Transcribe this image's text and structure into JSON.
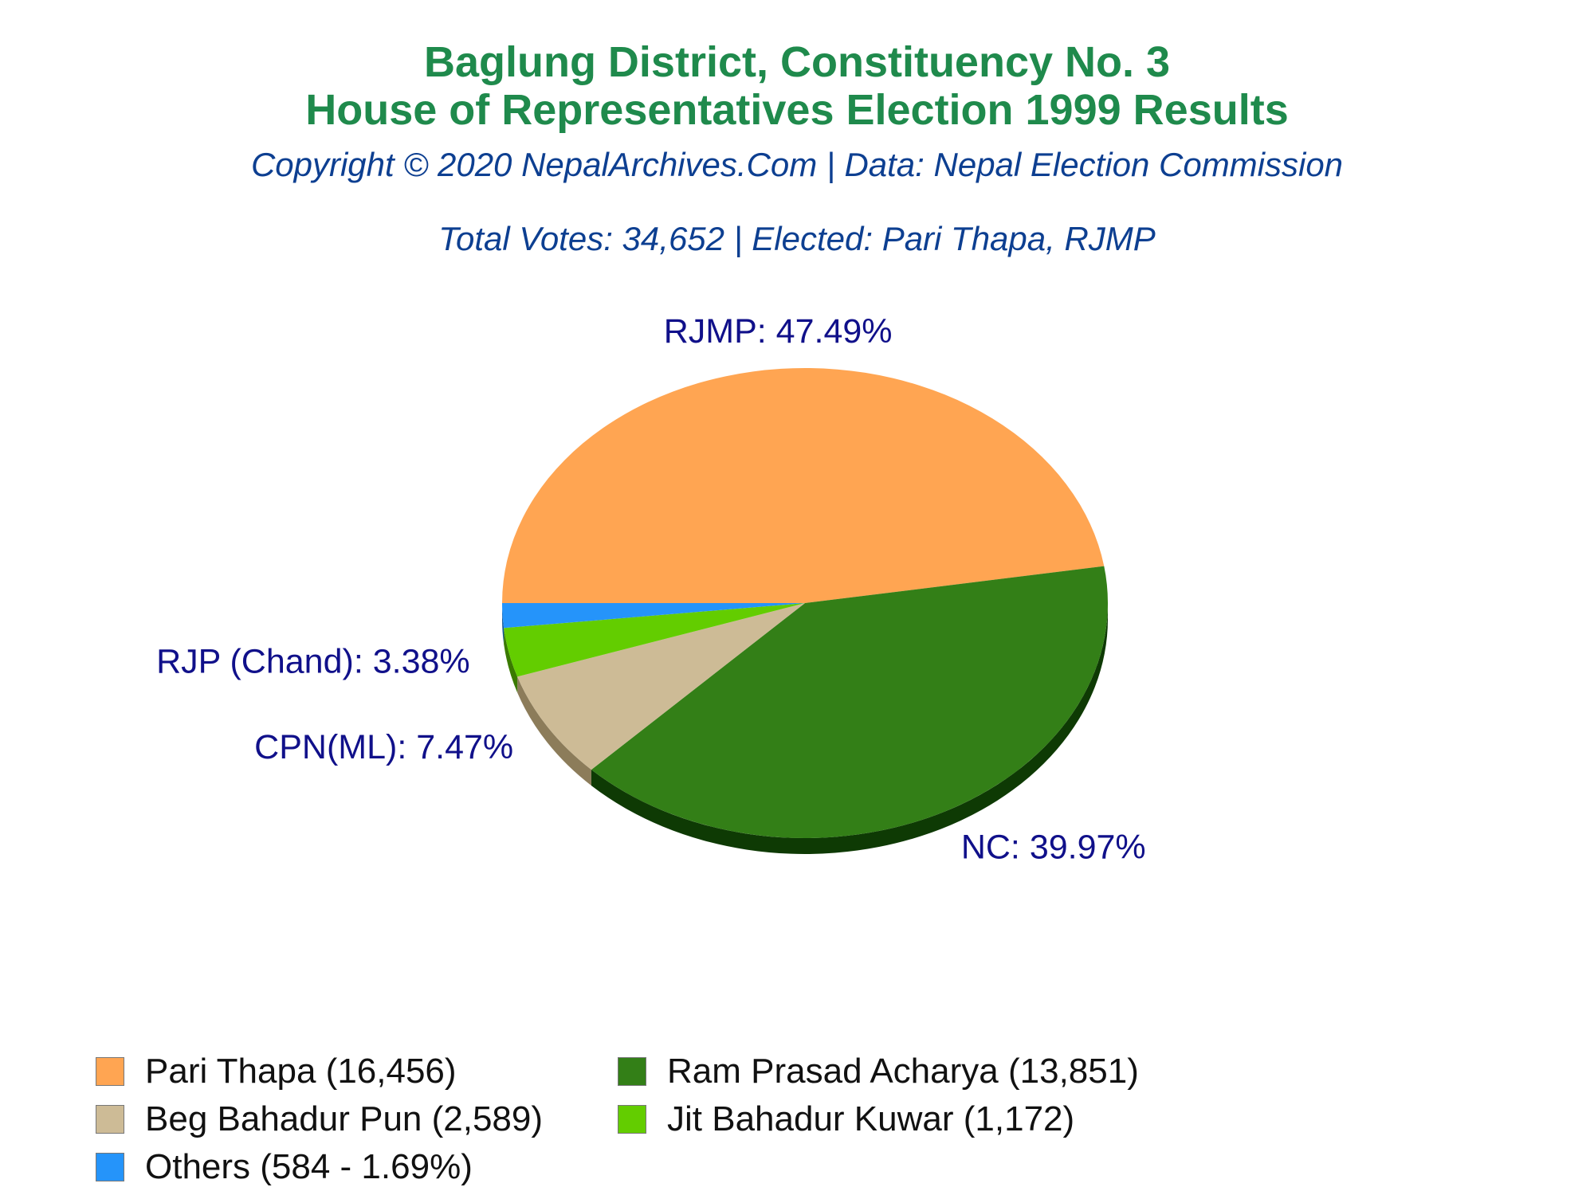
{
  "title_line1": "Baglung District, Constituency No. 3",
  "title_line2": "House of Representatives Election 1999 Results",
  "copyright": "Copyright © 2020 NepalArchives.Com | Data: Nepal Election Commission",
  "summary": "Total Votes: 34,652 | Elected: Pari Thapa, RJMP",
  "chart_data": {
    "type": "pie",
    "slices": [
      {
        "party": "RJMP",
        "label": "RJMP: 47.49%",
        "percent": 47.49,
        "color": "#ffa552",
        "side": "#b85a10"
      },
      {
        "party": "NC",
        "label": "NC: 39.97%",
        "percent": 39.97,
        "color": "#337f17",
        "side": "#0e3a04"
      },
      {
        "party": "CPN(ML)",
        "label": "CPN(ML): 7.47%",
        "percent": 7.47,
        "color": "#cdbb96",
        "side": "#8c7c5a"
      },
      {
        "party": "RJP (Chand)",
        "label": "RJP (Chand): 3.38%",
        "percent": 3.38,
        "color": "#63cd00",
        "side": "#3a7a00"
      },
      {
        "party": "Others",
        "label": "",
        "percent": 1.69,
        "color": "#2594fa",
        "side": "#135a9c"
      }
    ],
    "legend": [
      {
        "text": "Pari Thapa (16,456)",
        "color": "#ffa552"
      },
      {
        "text": "Ram Prasad Acharya (13,851)",
        "color": "#337f17"
      },
      {
        "text": "Beg Bahadur Pun (2,589)",
        "color": "#cdbb96"
      },
      {
        "text": "Jit Bahadur Kuwar (1,172)",
        "color": "#63cd00"
      },
      {
        "text": "Others (584 - 1.69%)",
        "color": "#2594fa"
      }
    ]
  }
}
